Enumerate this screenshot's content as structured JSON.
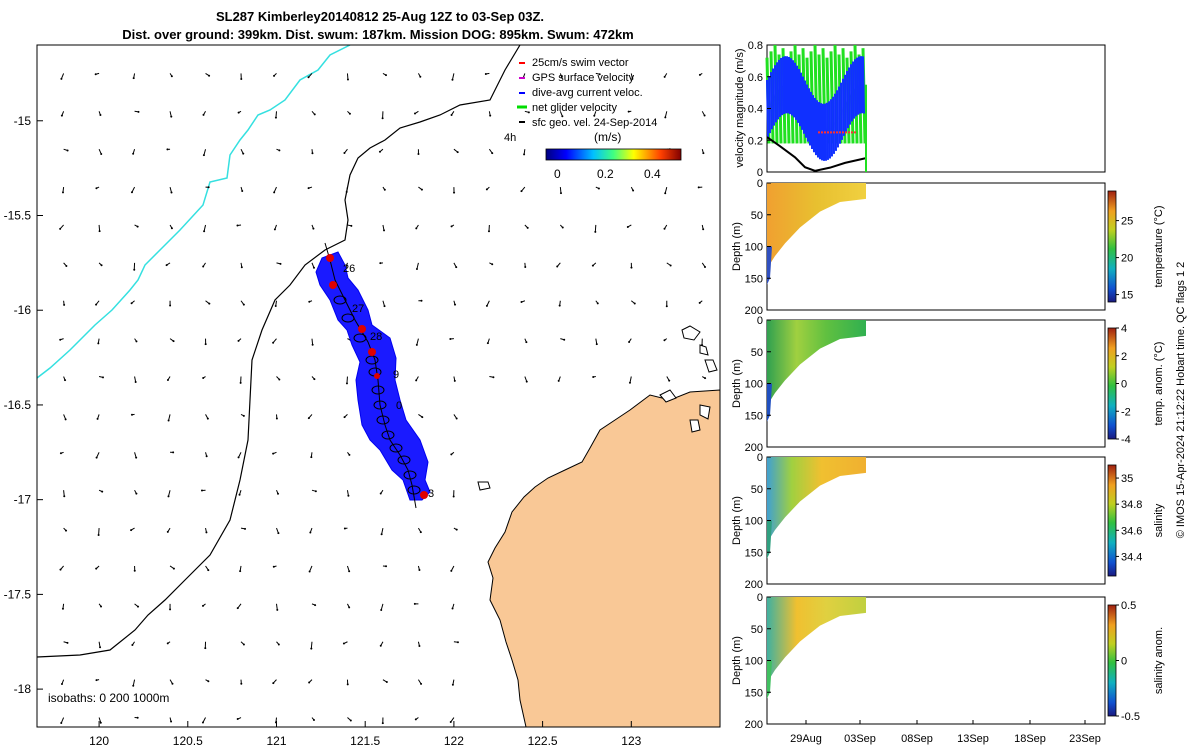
{
  "title_line1": "SL287 Kimberley20140812 25-Aug 12Z to 03-Sep 03Z.",
  "title_line2": "Dist. over ground: 399km. Dist. swum: 187km. Mission DOG: 895km. Swum: 472km",
  "legend": {
    "items": [
      {
        "label": "25cm/s swim vector",
        "color": "#ff0000"
      },
      {
        "label": "GPS surface velocity",
        "color": "#cc00cc"
      },
      {
        "label": "dive-avg current veloc.",
        "color": "#0000ff"
      },
      {
        "label": "net glider velocity",
        "color": "#00dd00"
      },
      {
        "label": "sfc geo. vel. 24-Sep-2014",
        "color": "#000000"
      }
    ],
    "hours_label": "4h",
    "colorbar_title": "(m/s)",
    "colorbar_ticks": [
      "0",
      "0.2",
      "0.4"
    ]
  },
  "map": {
    "x_ticks": [
      "120",
      "120.5",
      "121",
      "121.5",
      "122",
      "122.5",
      "123"
    ],
    "y_ticks": [
      "-15",
      "-15.5",
      "-16",
      "-16.5",
      "-17",
      "-17.5",
      "-18"
    ],
    "isobaths_label": "isobaths: 0   200  1000m",
    "track_labels": [
      "26",
      "27",
      "28",
      "9",
      "0",
      "3"
    ],
    "land_color": "#f9c896",
    "isobath_200_color": "#000000",
    "isobath_1000_color": "#35e0e0",
    "track_color": "#0000ff"
  },
  "panels": {
    "velocity": {
      "ylabel": "velocity magnitude (m/s)",
      "y_ticks": [
        "0",
        "0.2",
        "0.4",
        "0.6",
        "0.8"
      ]
    },
    "temperature": {
      "ylabel": "Depth (m)",
      "cbar_label": "temperature (°C)",
      "cbar_ticks": [
        "15",
        "20",
        "25"
      ]
    },
    "temp_anom": {
      "ylabel": "Depth (m)",
      "cbar_label": "temp. anom. (°C)",
      "cbar_ticks": [
        "4",
        "2",
        "0",
        "-2",
        "-4"
      ]
    },
    "salinity": {
      "ylabel": "Depth (m)",
      "cbar_label": "salinity",
      "cbar_ticks": [
        "35",
        "34.8",
        "34.6",
        "34.4"
      ]
    },
    "sal_anom": {
      "ylabel": "Depth (m)",
      "cbar_label": "salinity anom.",
      "cbar_ticks": [
        "0.5",
        "0",
        "-0.5"
      ]
    },
    "depth_ticks": [
      "0",
      "50",
      "100",
      "150",
      "200"
    ],
    "x_ticks": [
      "29Aug",
      "03Sep",
      "08Sep",
      "13Sep",
      "18Sep",
      "23Sep"
    ]
  },
  "footer": "© IMOS 15-Apr-2024 21:12:22 Hobart time. QC flags 1  2",
  "chart_data": {
    "type": "map",
    "title": "SL287 Kimberley20140812 25-Aug 12Z to 03-Sep 03Z.",
    "map_xlim": [
      119.65,
      123.5
    ],
    "map_ylim": [
      -18.2,
      -14.6
    ],
    "glider_track_lonlat": [
      [
        121.25,
        -15.6
      ],
      [
        121.3,
        -15.8
      ],
      [
        121.38,
        -16.0
      ],
      [
        121.5,
        -16.15
      ],
      [
        121.5,
        -16.35
      ],
      [
        121.55,
        -16.55
      ],
      [
        121.62,
        -16.7
      ],
      [
        121.72,
        -16.85
      ],
      [
        121.78,
        -17.0
      ]
    ],
    "velocity_ylim": [
      0,
      0.8
    ],
    "time_axis_days": [
      "29Aug",
      "03Sep",
      "08Sep",
      "13Sep",
      "18Sep",
      "23Sep"
    ],
    "depth_range_m": [
      0,
      200
    ],
    "temperature_clim": [
      14,
      29
    ],
    "temp_anom_clim": [
      -4,
      4
    ],
    "salinity_clim": [
      34.25,
      35.1
    ],
    "sal_anom_clim": [
      -0.5,
      0.5
    ]
  }
}
